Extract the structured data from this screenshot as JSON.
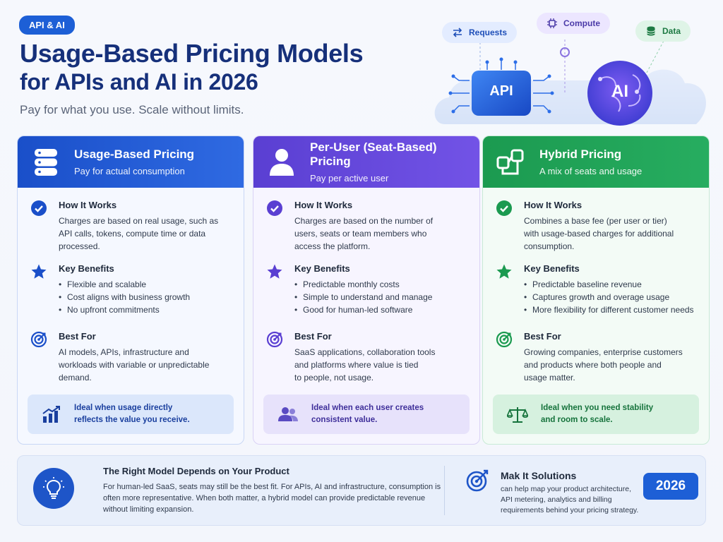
{
  "header": {
    "badge": "API & AI",
    "title_line1": "Usage-Based Pricing Models",
    "title_line2": "for APIs and AI in 2026",
    "subtitle": "Pay for what you use. Scale without limits."
  },
  "hero": {
    "pills": {
      "requests": "Requests",
      "compute": "Compute",
      "data": "Data"
    },
    "api_label": "API",
    "ai_label": "AI"
  },
  "cards": [
    {
      "title": "Usage-Based Pricing",
      "subtitle": "Pay for actual consumption",
      "icon": "database-icon",
      "how_title": "How It Works",
      "how_lines": [
        "Charges are based on real usage, such as",
        "API calls, tokens, compute time or data",
        "processed."
      ],
      "benefits_title": "Key Benefits",
      "benefits": [
        "Flexible and scalable",
        "Cost aligns with business growth",
        "No upfront commitments"
      ],
      "best_title": "Best For",
      "best_lines": [
        "AI models, APIs, infrastructure and",
        "workloads with variable or unpredictable",
        "demand."
      ],
      "ideal_lines": [
        "Ideal when usage directly",
        "reflects the value you receive."
      ],
      "ideal_icon": "growth-chart-icon"
    },
    {
      "title": "Per-User (Seat-Based) Pricing",
      "subtitle": "Pay per active user",
      "icon": "user-icon",
      "how_title": "How It Works",
      "how_lines": [
        "Charges are based on the number of",
        "users, seats or team members who",
        "access the platform."
      ],
      "benefits_title": "Key Benefits",
      "benefits": [
        "Predictable monthly costs",
        "Simple to understand and manage",
        "Good for human-led software"
      ],
      "best_title": "Best For",
      "best_lines": [
        "SaaS applications, collaboration tools",
        "and platforms where value is tied",
        "to people, not usage."
      ],
      "ideal_lines": [
        "Ideal when each user creates",
        "consistent value."
      ],
      "ideal_icon": "users-icon"
    },
    {
      "title": "Hybrid Pricing",
      "subtitle": "A mix of seats and usage",
      "icon": "hybrid-icon",
      "how_title": "How It Works",
      "how_lines": [
        "Combines a base fee (per user or tier)",
        "with usage-based charges for additional",
        "consumption."
      ],
      "benefits_title": "Key Benefits",
      "benefits": [
        "Predictable baseline revenue",
        "Captures growth and overage usage",
        "More flexibility for different customer needs"
      ],
      "best_title": "Best For",
      "best_lines": [
        "Growing companies, enterprise customers",
        "and products where both people and",
        "usage matter."
      ],
      "ideal_lines": [
        "Ideal when you need stability",
        "and room to scale."
      ],
      "ideal_icon": "balance-scale-icon"
    }
  ],
  "bottom": {
    "title": "The Right Model Depends on Your Product",
    "body": "For human-led SaaS, seats may still be the best fit. For APIs, AI and infrastructure, consumption is often more representative. When both matter, a hybrid model can provide predictable revenue without limiting expansion.",
    "company_title": "Mak It Solutions",
    "company_body": "can help map your product architecture, API metering, analytics and billing requirements behind your pricing strategy.",
    "year": "2026"
  },
  "colors": {
    "blue": "#1a4fc9",
    "purple": "#5a3fd2",
    "green": "#1b9a50",
    "navy": "#16307a"
  }
}
